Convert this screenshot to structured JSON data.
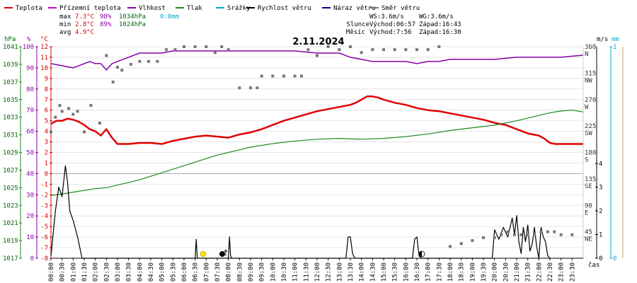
{
  "chart_data": {
    "type": "line",
    "title": "2.11.2024",
    "x_unit_label": "čas",
    "time_ticks": [
      "00:00",
      "00:30",
      "01:00",
      "01:30",
      "02:00",
      "02:30",
      "03:00",
      "03:30",
      "04:00",
      "04:30",
      "05:00",
      "05:30",
      "06:00",
      "06:30",
      "07:00",
      "07:30",
      "08:00",
      "08:30",
      "09:00",
      "09:30",
      "10:00",
      "10:30",
      "11:00",
      "11:30",
      "12:00",
      "12:30",
      "13:00",
      "13:30",
      "14:00",
      "14:30",
      "15:00",
      "15:30",
      "16:00",
      "16:30",
      "17:00",
      "17:30",
      "18:00",
      "18:30",
      "19:00",
      "19:30",
      "20:00",
      "20:30",
      "21:00",
      "21:30",
      "22:00",
      "22:30",
      "23:00",
      "23:30"
    ],
    "axes": {
      "pressure": {
        "label": "hPa",
        "ticks": [
          "1041",
          "1039",
          "1037",
          "1035",
          "1033",
          "1031",
          "1029",
          "1027",
          "1025",
          "1023",
          "1021",
          "1019",
          "1017"
        ],
        "range": [
          1017,
          1041
        ]
      },
      "humidity": {
        "label": "%",
        "ticks": [
          "100",
          "90",
          "80",
          "70",
          "60",
          "50",
          "40",
          "30",
          "20",
          "10",
          "0"
        ],
        "range": [
          0,
          100
        ]
      },
      "temperature": {
        "label": "°C",
        "ticks": [
          "12",
          "11",
          "10",
          "9",
          "8",
          "7",
          "6",
          "5",
          "4",
          "3",
          "2",
          "1",
          "0",
          "-1",
          "-2",
          "-3",
          "-4",
          "-5",
          "-6",
          "-7",
          "-8"
        ],
        "range": [
          -8,
          12
        ]
      },
      "direction": {
        "ticks": [
          "360",
          "315",
          "270",
          "225",
          "180",
          "135",
          "90",
          "45"
        ],
        "cardinal": [
          "N",
          "NW",
          "W",
          "SW",
          "S",
          "SE",
          "E",
          "NE"
        ],
        "range": [
          0,
          360
        ]
      },
      "wind": {
        "label": "m/s",
        "ticks": [
          "4",
          "3",
          "2",
          "1",
          "0"
        ],
        "range": [
          0,
          4
        ]
      },
      "rain": {
        "label": "mm",
        "ticks": [
          "1",
          "0"
        ],
        "range": [
          0,
          1
        ]
      }
    },
    "legend": [
      {
        "name": "Teplota",
        "color": "#e00000"
      },
      {
        "name": "Přízemní teplota",
        "color": "#cc00cc"
      },
      {
        "name": "Vlhkost",
        "color": "#8800aa"
      },
      {
        "name": "Tlak",
        "color": "#228822"
      },
      {
        "name": "Srážky",
        "color": "#00aacc"
      },
      {
        "name": "Rychlost větru",
        "color": "#000000"
      },
      {
        "name": "Náraz větru",
        "color": "#000088"
      },
      {
        "name": "Směr větru",
        "color": "#777777"
      }
    ],
    "stats": {
      "max": {
        "label": "max",
        "temp": "7.3°C",
        "hum": "98%",
        "press": "1034hPa",
        "rain": "0.0mm"
      },
      "min": {
        "label": "min",
        "temp": "2.8°C",
        "hum": "89%",
        "press": "1024hPa"
      },
      "avg": {
        "label": "avg",
        "temp": "4.9°C"
      }
    },
    "wind_info": {
      "ws": "WS:3.6m/s",
      "wg": "WG:3.6m/s"
    },
    "sun": {
      "label": "Slunce",
      "rise": "Východ:06:57",
      "set": "Západ:16:43"
    },
    "moon": {
      "label": "Měsíc",
      "rise": "Východ:7:56",
      "set": "Západ:16:30"
    },
    "series": [
      {
        "name": "Teplota",
        "color": "#e00000",
        "unit": "°C",
        "x": [
          0.0,
          0.25,
          0.5,
          0.75,
          1.0,
          1.25,
          1.5,
          1.75,
          2.0,
          2.25,
          2.5,
          2.75,
          3.0,
          3.5,
          4.0,
          4.5,
          5.0,
          5.5,
          6.0,
          6.5,
          7.0,
          7.5,
          8.0,
          8.5,
          9.0,
          9.5,
          10.0,
          10.5,
          11.0,
          11.5,
          12.0,
          12.5,
          13.0,
          13.5,
          13.75,
          14.0,
          14.25,
          14.5,
          14.75,
          15.0,
          15.5,
          16.0,
          16.5,
          17.0,
          17.5,
          18.0,
          18.5,
          19.0,
          19.5,
          20.0,
          20.5,
          21.0,
          21.5,
          22.0,
          22.25,
          22.5,
          22.75,
          23.0,
          23.5,
          23.99
        ],
        "y": [
          4.7,
          5.0,
          5.0,
          5.2,
          5.1,
          4.9,
          4.6,
          4.2,
          4.0,
          3.6,
          4.2,
          3.4,
          2.8,
          2.8,
          2.9,
          2.9,
          2.8,
          3.1,
          3.3,
          3.5,
          3.6,
          3.5,
          3.4,
          3.7,
          3.9,
          4.2,
          4.6,
          5.0,
          5.3,
          5.6,
          5.9,
          6.1,
          6.3,
          6.5,
          6.7,
          7.0,
          7.3,
          7.3,
          7.2,
          7.0,
          6.7,
          6.5,
          6.2,
          6.0,
          5.9,
          5.7,
          5.5,
          5.3,
          5.1,
          4.8,
          4.6,
          4.2,
          3.8,
          3.6,
          3.3,
          2.9,
          2.8,
          2.8,
          2.8,
          2.8
        ]
      },
      {
        "name": "Vlhkost",
        "color": "#8800aa",
        "unit": "%",
        "x": [
          0.0,
          0.5,
          1.0,
          1.25,
          1.5,
          1.75,
          2.0,
          2.25,
          2.5,
          2.75,
          3.0,
          3.5,
          4.0,
          4.5,
          5.0,
          5.5,
          6.0,
          7.0,
          8.0,
          9.0,
          10.0,
          11.0,
          12.0,
          13.0,
          13.5,
          14.0,
          14.5,
          15.0,
          15.5,
          16.0,
          16.5,
          17.0,
          17.5,
          18.0,
          19.0,
          20.0,
          21.0,
          22.0,
          23.0,
          23.99
        ],
        "y": [
          92,
          91,
          90,
          91,
          92,
          93,
          92,
          92,
          89,
          92,
          93,
          95,
          97,
          97,
          97,
          98,
          98,
          98,
          98,
          98,
          98,
          98,
          97,
          97,
          95,
          94,
          93,
          93,
          93,
          93,
          92,
          93,
          93,
          94,
          94,
          94,
          95,
          95,
          95,
          96
        ]
      },
      {
        "name": "Tlak",
        "color": "#228822",
        "unit": "hPa",
        "x": [
          0.0,
          0.5,
          1.0,
          1.5,
          2.0,
          2.5,
          3.0,
          3.5,
          4.0,
          4.5,
          5.0,
          5.5,
          6.0,
          6.5,
          7.0,
          7.5,
          8.0,
          8.5,
          9.0,
          9.5,
          10.0,
          11.0,
          12.0,
          13.0,
          14.0,
          15.0,
          16.0,
          17.0,
          18.0,
          19.0,
          20.0,
          21.0,
          22.0,
          22.5,
          23.0,
          23.5,
          23.99
        ],
        "y": [
          1024.1,
          1024.3,
          1024.5,
          1024.7,
          1024.9,
          1025.0,
          1025.3,
          1025.6,
          1025.9,
          1026.3,
          1026.7,
          1027.1,
          1027.5,
          1027.9,
          1028.3,
          1028.7,
          1029.0,
          1029.3,
          1029.6,
          1029.8,
          1030.0,
          1030.3,
          1030.5,
          1030.6,
          1030.5,
          1030.6,
          1030.8,
          1031.1,
          1031.5,
          1031.8,
          1032.1,
          1032.6,
          1033.2,
          1033.5,
          1033.7,
          1033.8,
          1033.6
        ]
      },
      {
        "name": "Rychlost větru",
        "color": "#000000",
        "unit": "m/s",
        "x": [
          0.0,
          0.2,
          0.35,
          0.5,
          0.65,
          0.75,
          0.85,
          1.0,
          1.2,
          1.4,
          1.5,
          6.5,
          6.55,
          6.6,
          6.65,
          7.5,
          8.0,
          8.05,
          8.1,
          8.15,
          13.3,
          13.4,
          13.5,
          13.6,
          13.7,
          16.3,
          16.4,
          16.5,
          16.6,
          16.7,
          19.9,
          20.0,
          20.2,
          20.4,
          20.6,
          20.8,
          20.9,
          21.0,
          21.1,
          21.2,
          21.3,
          21.4,
          21.5,
          21.6,
          21.7,
          21.8,
          21.9,
          22.0,
          22.1,
          22.2,
          22.3,
          22.4,
          22.5
        ],
        "y": [
          0.1,
          2.0,
          3.0,
          2.6,
          3.9,
          3.2,
          2.0,
          1.6,
          0.9,
          0.0,
          0.0,
          0.0,
          0.8,
          0.0,
          0.0,
          0.0,
          0.0,
          0.9,
          0.1,
          0.0,
          0.0,
          0.9,
          0.9,
          0.2,
          0.0,
          0.0,
          0.8,
          0.9,
          0.1,
          0.0,
          0.0,
          1.2,
          0.8,
          1.3,
          0.9,
          1.7,
          1.0,
          1.8,
          0.7,
          0.2,
          1.3,
          0.7,
          1.4,
          0.3,
          0.6,
          1.3,
          0.5,
          0.0,
          1.3,
          0.9,
          0.7,
          0.1,
          0.0
        ]
      },
      {
        "name": "Směr větru",
        "color": "#777777",
        "unit": "°",
        "x": [
          0.0,
          0.2,
          0.4,
          0.5,
          0.8,
          1.0,
          1.2,
          1.5,
          1.8,
          2.2,
          2.5,
          2.8,
          3.0,
          3.2,
          3.6,
          4.0,
          4.4,
          4.8,
          5.2,
          5.6,
          6.0,
          6.5,
          7.0,
          7.4,
          7.7,
          8.0,
          8.5,
          9.0,
          9.3,
          9.5,
          10.0,
          10.5,
          11.0,
          11.3,
          11.6,
          12.0,
          12.5,
          13.0,
          13.5,
          14.0,
          14.5,
          15.0,
          15.5,
          16.0,
          16.5,
          17.0,
          17.5,
          18.0,
          18.5,
          19.0,
          19.5,
          20.0,
          20.3,
          20.6,
          20.9,
          21.2,
          21.5,
          21.8,
          22.1,
          22.4,
          22.7,
          23.0,
          23.5
        ],
        "y": [
          215,
          240,
          260,
          250,
          255,
          245,
          250,
          215,
          260,
          230,
          345,
          300,
          325,
          320,
          330,
          335,
          335,
          335,
          355,
          355,
          360,
          360,
          360,
          350,
          360,
          355,
          290,
          290,
          290,
          310,
          310,
          310,
          310,
          310,
          355,
          345,
          360,
          355,
          360,
          350,
          355,
          355,
          355,
          355,
          355,
          355,
          360,
          20,
          25,
          30,
          35,
          35,
          40,
          45,
          40,
          40,
          40,
          40,
          45,
          45,
          45,
          40,
          40
        ]
      }
    ]
  }
}
